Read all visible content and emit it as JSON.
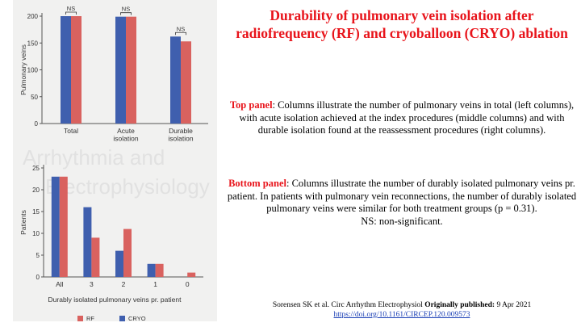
{
  "title": "Durability of pulmonary vein isolation after radiofrequency (RF) and cryoballoon (CRYO) ablation",
  "watermark": {
    "line1": "Arrhythmia and",
    "line2": "Electrophysiology"
  },
  "top_panel_text": {
    "lead": "Top panel",
    "body": ": Columns illustrate the number of pulmonary veins in total (left columns), with acute isolation achieved at the index procedures (middle columns) and with durable isolation found at the reassessment procedures (right columns)."
  },
  "bottom_panel_text": {
    "lead": "Bottom panel",
    "body": ": Columns illustrate the number of durably isolated pulmonary veins pr. patient. In patients with pulmonary vein reconnections, the number of durably isolated pulmonary veins were similar for both treatment groups (p = 0.31).",
    "note": "NS: non-significant."
  },
  "citation": {
    "text": "Sorensen SK et al. Circ Arrhythm Electrophysiol ",
    "bold": "Originally published:",
    "date": " 9 Apr 2021",
    "link": "https://doi.org/10.1161/CIRCEP.120.009573"
  },
  "colors": {
    "rf": "#d9625f",
    "cryo": "#3f5fae",
    "title": "#e8141b"
  },
  "chart_data": [
    {
      "type": "bar",
      "categories": [
        "Total",
        "Acute\nisolation",
        "Durable\nisolation"
      ],
      "series": [
        {
          "name": "CRYO",
          "values": [
            200,
            199,
            162
          ]
        },
        {
          "name": "RF",
          "values": [
            200,
            199,
            153
          ]
        }
      ],
      "annotations": [
        "NS",
        "NS",
        "NS"
      ],
      "xlabel": "",
      "ylabel": "Pulmonary veins",
      "ylim": [
        0,
        200
      ],
      "yticks": [
        0,
        50,
        100,
        150,
        200
      ]
    },
    {
      "type": "bar",
      "categories": [
        "All",
        "3",
        "2",
        "1",
        "0"
      ],
      "series": [
        {
          "name": "CRYO",
          "values": [
            23,
            16,
            6,
            3,
            0
          ]
        },
        {
          "name": "RF",
          "values": [
            23,
            9,
            11,
            3,
            1
          ]
        }
      ],
      "xlabel": "Durably isolated pulmonary veins pr. patient",
      "ylabel": "Patients",
      "ylim": [
        0,
        25
      ],
      "yticks": [
        0,
        5,
        10,
        15,
        20,
        25
      ],
      "legend": {
        "position": "bottom",
        "entries": [
          "RF",
          "CRYO"
        ]
      }
    }
  ]
}
